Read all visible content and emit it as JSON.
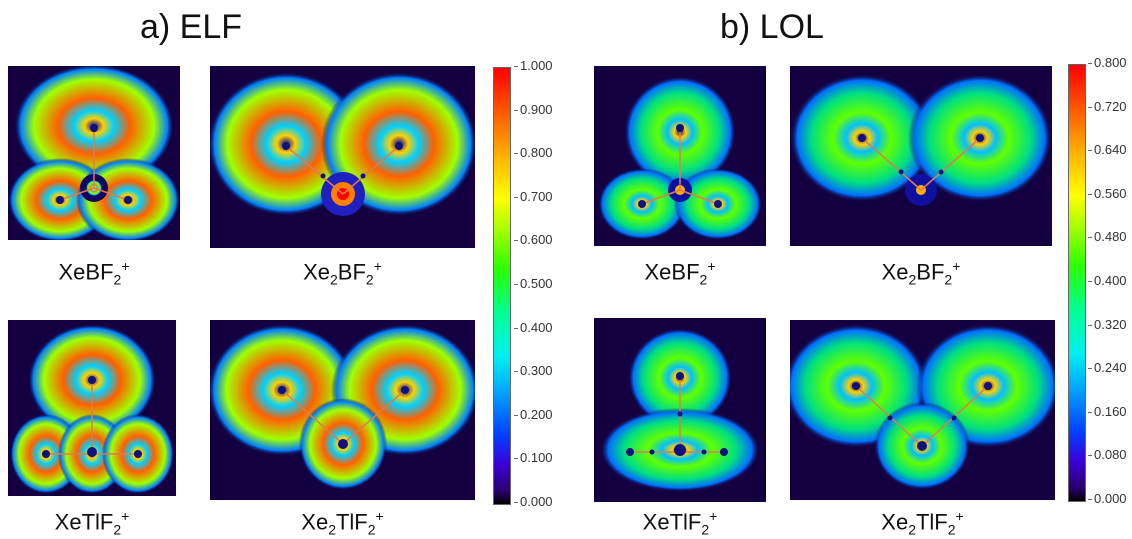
{
  "panels": [
    {
      "title": "a) ELF",
      "maps": [
        {
          "label": {
            "pre": "XeBF",
            "sub": "2",
            "sup": "+"
          }
        },
        {
          "label": {
            "pre": "Xe",
            "sub": "2",
            "mid": "BF",
            "sub2": "2",
            "sup": "+"
          }
        },
        {
          "label": {
            "pre": "XeTlF",
            "sub": "2",
            "sup": "+"
          }
        },
        {
          "label": {
            "pre": "Xe",
            "sub": "2",
            "mid": "TlF",
            "sub2": "2",
            "sup": "+"
          }
        }
      ],
      "colorbar": {
        "ticks": [
          "1.000",
          "0.900",
          "0.800",
          "0.700",
          "0.600",
          "0.500",
          "0.400",
          "0.300",
          "0.200",
          "0.100",
          "0.000"
        ]
      }
    },
    {
      "title": "b) LOL",
      "maps": [
        {
          "label": {
            "pre": "XeBF",
            "sub": "2",
            "sup": "+"
          }
        },
        {
          "label": {
            "pre": "Xe",
            "sub": "2",
            "mid": "BF",
            "sub2": "2",
            "sup": "+"
          }
        },
        {
          "label": {
            "pre": "XeTlF",
            "sub": "2",
            "sup": "+"
          }
        },
        {
          "label": {
            "pre": "Xe",
            "sub": "2",
            "mid": "TlF",
            "sub2": "2",
            "sup": "+"
          }
        }
      ],
      "colorbar": {
        "ticks": [
          "0.800",
          "0.720",
          "0.640",
          "0.560",
          "0.480",
          "0.400",
          "0.320",
          "0.240",
          "0.160",
          "0.080",
          "0.000"
        ]
      }
    }
  ],
  "colors": {
    "background": "#140040",
    "bond_line": "#e07a50",
    "critical_point": "#101080"
  }
}
